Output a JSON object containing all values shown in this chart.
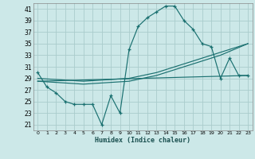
{
  "xlabel": "Humidex (Indice chaleur)",
  "background_color": "#cce8e8",
  "grid_color": "#aacccc",
  "line_color": "#1a7070",
  "xlim": [
    -0.5,
    23.5
  ],
  "ylim": [
    20,
    42
  ],
  "yticks": [
    21,
    23,
    25,
    27,
    29,
    31,
    33,
    35,
    37,
    39,
    41
  ],
  "xticks": [
    0,
    1,
    2,
    3,
    4,
    5,
    6,
    7,
    8,
    9,
    10,
    11,
    12,
    13,
    14,
    15,
    16,
    17,
    18,
    19,
    20,
    21,
    22,
    23
  ],
  "curve1_x": [
    0,
    1,
    2,
    3,
    4,
    5,
    6,
    7,
    8,
    9,
    10,
    11,
    12,
    13,
    14,
    15,
    16,
    17,
    18,
    19,
    20,
    21,
    22,
    23
  ],
  "curve1_y": [
    30,
    27.5,
    26.5,
    25,
    24.5,
    24.5,
    24.5,
    21,
    26.0,
    23.0,
    34,
    38,
    39.5,
    40.5,
    41.5,
    41.5,
    39,
    37.5,
    35,
    34.5,
    29,
    32.5,
    29.5,
    29.5
  ],
  "curve2_x": [
    0,
    5,
    10,
    13,
    14,
    15,
    17,
    19,
    20,
    23
  ],
  "curve2_y": [
    29,
    28.5,
    29,
    30,
    30.5,
    31,
    32,
    33,
    33.5,
    35.0
  ],
  "curve3_x": [
    0,
    5,
    10,
    13,
    14,
    15,
    17,
    19,
    20,
    23
  ],
  "curve3_y": [
    28.5,
    28.0,
    28.5,
    29.5,
    30.0,
    30.5,
    31.5,
    32.5,
    33.0,
    35.0
  ],
  "curve4_x": [
    0,
    23
  ],
  "curve4_y": [
    28.5,
    29.5
  ]
}
